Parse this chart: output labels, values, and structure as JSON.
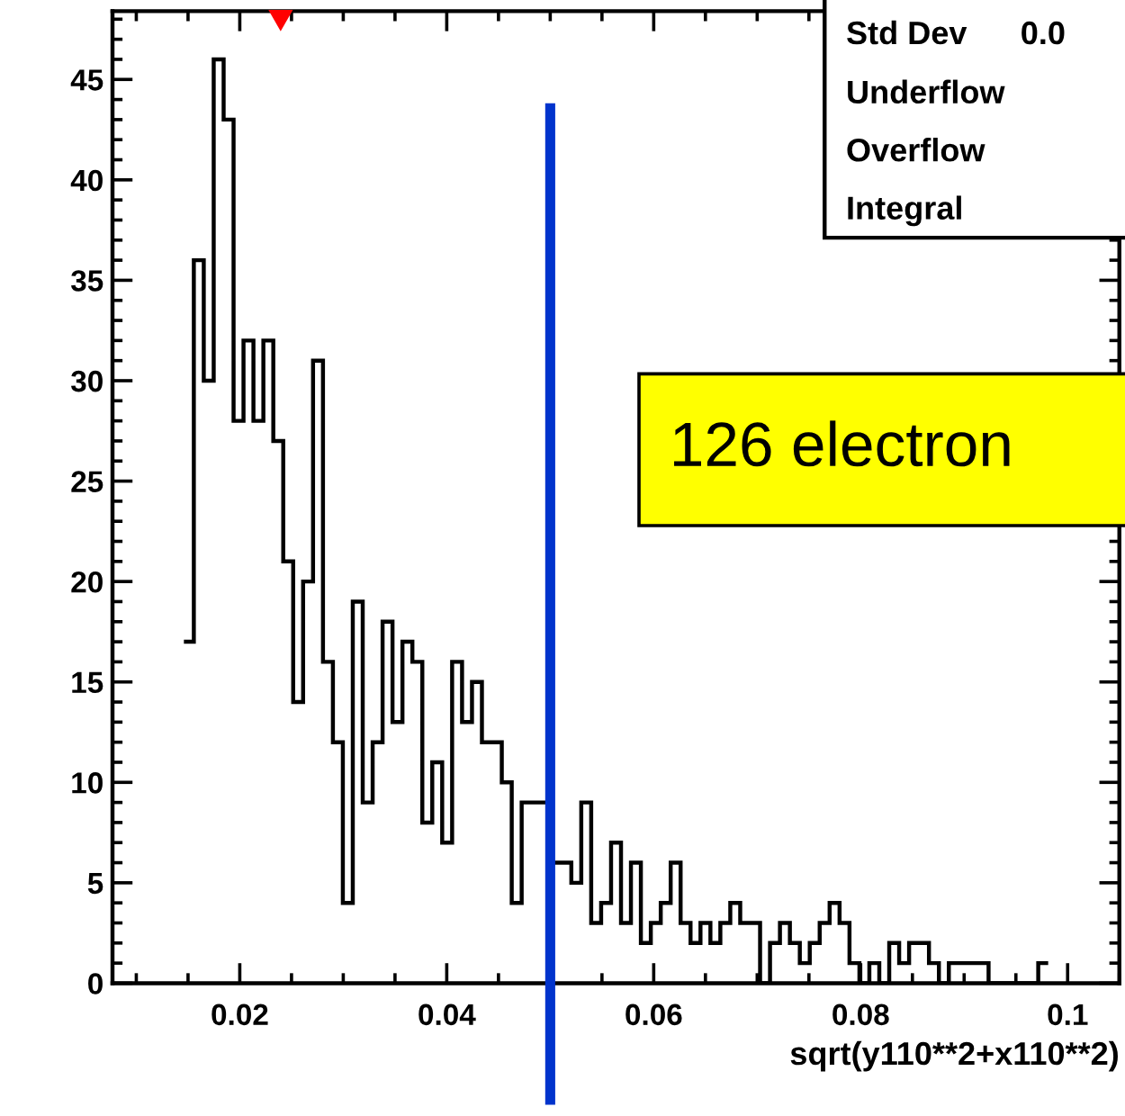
{
  "chart_data": {
    "type": "histogram",
    "xlabel": "sqrt(y110**2+x110**2)",
    "bins": [
      0.0146,
      0.01556,
      0.01652,
      0.01748,
      0.01844,
      0.0194,
      0.02036,
      0.02132,
      0.02228,
      0.02324,
      0.0242,
      0.02516,
      0.02612,
      0.02708,
      0.02804,
      0.029,
      0.02996,
      0.03092,
      0.03188,
      0.03284,
      0.0338,
      0.03476,
      0.03572,
      0.03668,
      0.03764,
      0.0386,
      0.03956,
      0.04052,
      0.04148,
      0.04244,
      0.0434,
      0.04436,
      0.04532,
      0.04628,
      0.04724,
      0.0482,
      0.04916,
      0.05012,
      0.05108,
      0.05204,
      0.053,
      0.05396,
      0.05492,
      0.05588,
      0.05684,
      0.0578,
      0.05876,
      0.05972,
      0.06068,
      0.06164,
      0.0626,
      0.06356,
      0.06452,
      0.06548,
      0.06644,
      0.0674,
      0.06836,
      0.06932,
      0.07028,
      0.07124,
      0.0722,
      0.07316,
      0.07412,
      0.07508,
      0.07604,
      0.077,
      0.07796,
      0.07892,
      0.07988,
      0.08084,
      0.0818,
      0.08276,
      0.08372,
      0.08468,
      0.08564,
      0.0866,
      0.08756,
      0.08852,
      0.08948,
      0.09044,
      0.0914,
      0.09236,
      0.09332,
      0.09428,
      0.09524,
      0.0962,
      0.09716,
      0.09812
    ],
    "values": [
      17,
      36,
      30,
      46,
      43,
      28,
      32,
      28,
      32,
      27,
      21,
      14,
      20,
      31,
      16,
      12,
      4,
      19,
      9,
      12,
      18,
      13,
      17,
      16,
      8,
      11,
      7,
      16,
      13,
      15,
      12,
      12,
      10,
      4,
      9,
      9,
      9,
      6,
      6,
      5,
      9,
      3,
      4,
      7,
      3,
      6,
      2,
      3,
      4,
      6,
      3,
      2,
      3,
      2,
      3,
      4,
      3,
      3,
      0,
      2,
      3,
      2,
      1,
      2,
      3,
      4,
      3,
      1,
      0,
      1,
      0,
      2,
      1,
      2,
      2,
      1,
      0,
      1,
      1,
      1,
      1,
      0,
      0,
      0,
      0,
      0,
      1
    ],
    "color": "#000000",
    "xlim": [
      0.0077,
      0.105
    ],
    "xticks": [
      0.02,
      0.04,
      0.06,
      0.08,
      0.1
    ],
    "ylim": [
      0,
      48.4
    ],
    "yticks": [
      0,
      5,
      10,
      15,
      20,
      25,
      30,
      35,
      40,
      45
    ],
    "grid": false,
    "ref_lines": [
      {
        "axis": "x",
        "value": 0.05,
        "color": "#0033cc"
      }
    ],
    "annotations": [
      "Std Dev",
      "0.0",
      "Underflow",
      "Overflow",
      "Integral",
      "126 electron"
    ]
  }
}
